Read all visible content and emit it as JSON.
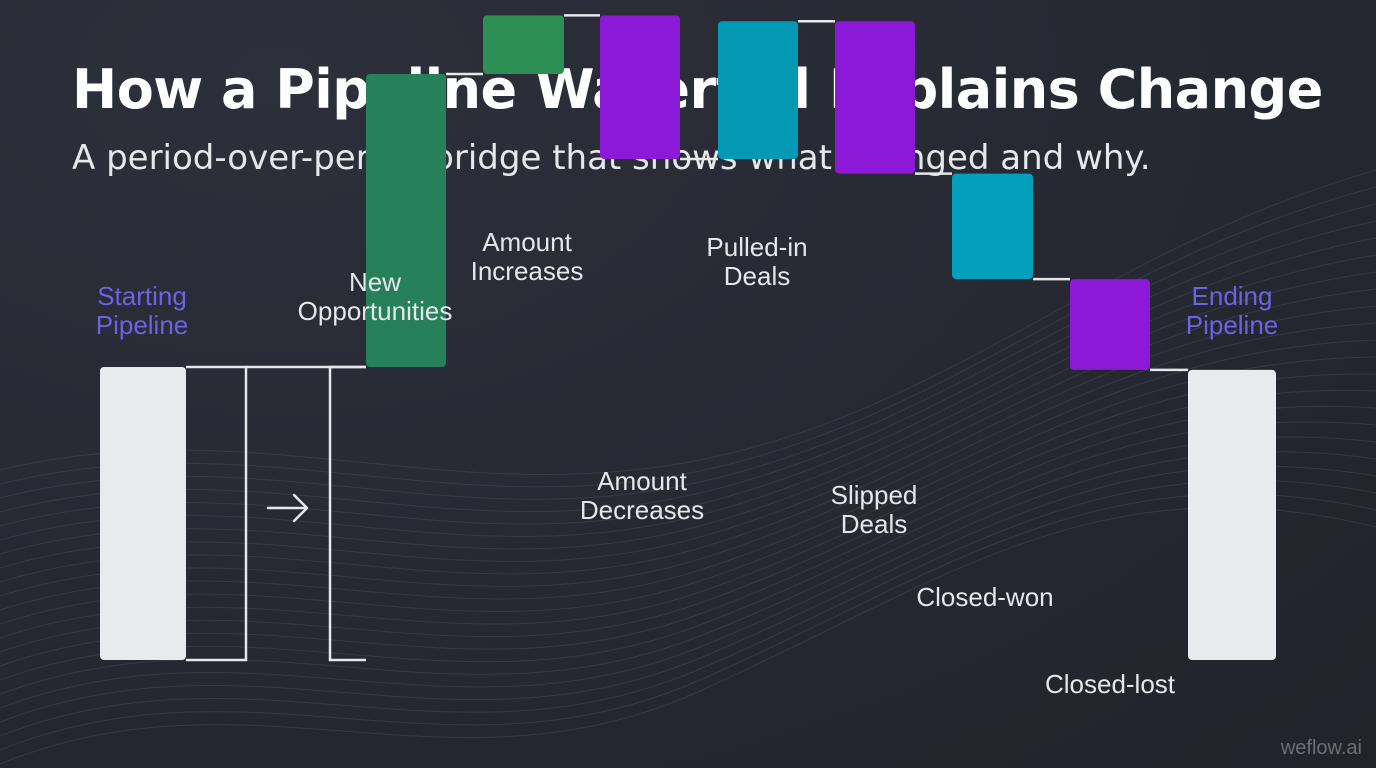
{
  "header": {
    "title": "How a Pipeline Waterfall Explains Change",
    "subtitle": "A period-over-period bridge that shows what changed and why."
  },
  "watermark": "weflow.ai",
  "colors": {
    "background": "#262832",
    "total_bar": "#e9eaed",
    "total_label": "#6a63e6",
    "new_opportunities": "#26805a",
    "amount_increases": "#2e8f55",
    "decrease": "#8c18d8",
    "pulled_in": "#0399b5",
    "closed_won": "#04a0bb",
    "connector": "#e6e7ea",
    "label": "#e6e7ea"
  },
  "chart_data": {
    "type": "bar",
    "subtype": "waterfall",
    "categories": [
      "Starting Pipeline",
      "New Opportunities",
      "Amount Increases",
      "Amount Decreases",
      "Pulled-in Deals",
      "Slipped Deals",
      "Closed-won",
      "Closed-lost",
      "Ending Pipeline"
    ],
    "steps": [
      {
        "label": "Starting Pipeline",
        "kind": "total",
        "value": 100,
        "color_key": "total_bar",
        "label_position": "above",
        "label_color_key": "total_label"
      },
      {
        "label": "New Opportunities",
        "kind": "increase",
        "value": 100,
        "color_key": "new_opportunities",
        "label_position": "above",
        "label_color_key": "label"
      },
      {
        "label": "Amount Increases",
        "kind": "increase",
        "value": 20,
        "color_key": "amount_increases",
        "label_position": "above",
        "label_color_key": "label"
      },
      {
        "label": "Amount Decreases",
        "kind": "decrease",
        "value": -49,
        "color_key": "decrease",
        "label_position": "below",
        "label_color_key": "label"
      },
      {
        "label": "Pulled-in Deals",
        "kind": "increase",
        "value": 47,
        "color_key": "pulled_in",
        "label_position": "above",
        "label_color_key": "label"
      },
      {
        "label": "Slipped Deals",
        "kind": "decrease",
        "value": -52,
        "color_key": "decrease",
        "label_position": "below",
        "label_color_key": "label"
      },
      {
        "label": "Closed-won",
        "kind": "decrease",
        "value": -36,
        "color_key": "closed_won",
        "label_position": "below",
        "label_color_key": "label"
      },
      {
        "label": "Closed-lost",
        "kind": "decrease",
        "value": -31,
        "color_key": "decrease",
        "label_position": "below",
        "label_color_key": "label"
      },
      {
        "label": "Ending Pipeline",
        "kind": "total",
        "value": 99,
        "color_key": "total_bar",
        "label_position": "above",
        "label_color_key": "total_label"
      }
    ],
    "ylim": [
      0,
      120
    ],
    "grid": false,
    "legend": "none",
    "xlabel": "",
    "ylabel": ""
  }
}
